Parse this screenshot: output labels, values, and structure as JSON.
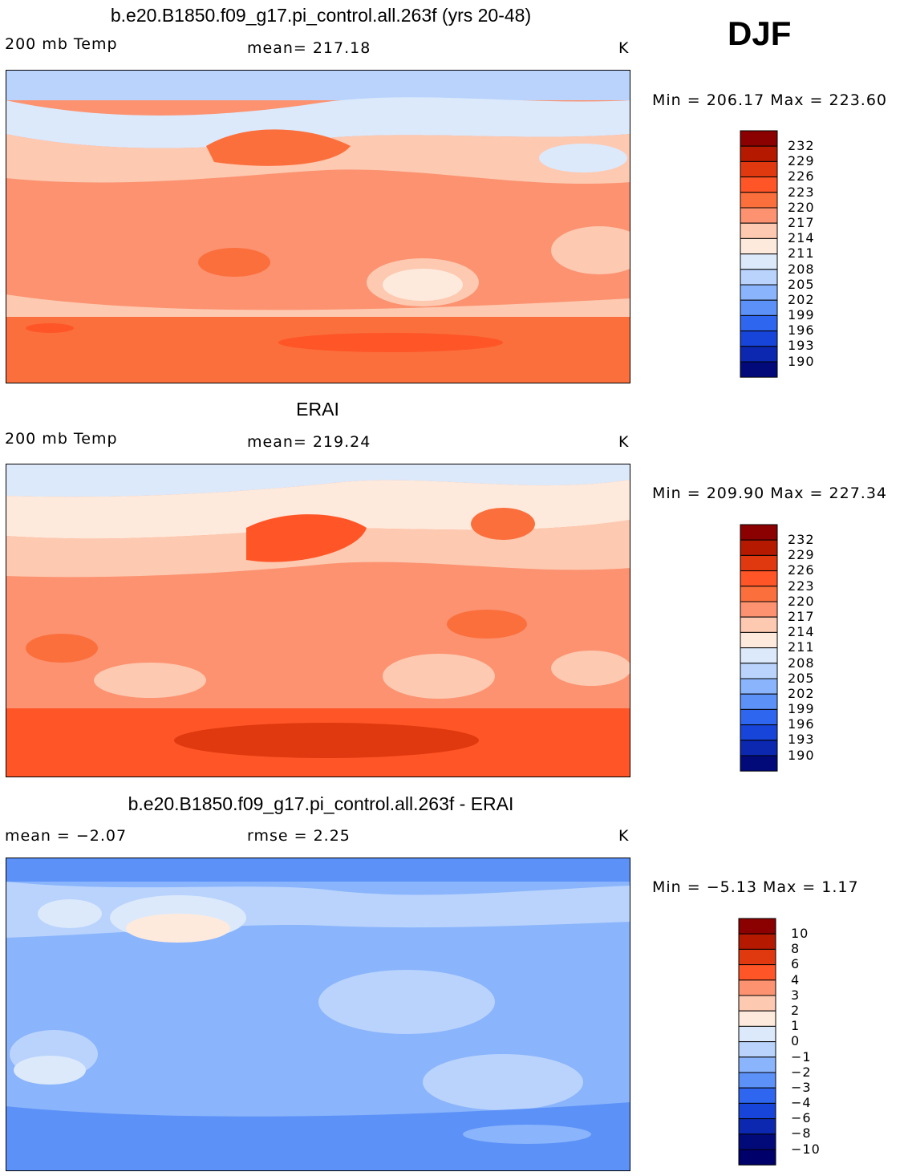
{
  "season": "DJF",
  "panels": [
    {
      "title": "b.e20.B1850.f09_g17.pi_control.all.263f (yrs 20-48)",
      "left_label": "200 mb Temp",
      "center_label": "mean= 217.18",
      "units": "K",
      "minmax": "Min = 206.17 Max = 223.60",
      "colorbar_labels": [
        "232",
        "229",
        "226",
        "223",
        "220",
        "217",
        "214",
        "211",
        "208",
        "205",
        "202",
        "199",
        "196",
        "193",
        "190"
      ]
    },
    {
      "title": "ERAI",
      "left_label": "200 mb Temp",
      "center_label": "mean= 219.24",
      "units": "K",
      "minmax": "Min = 209.90 Max = 227.34",
      "colorbar_labels": [
        "232",
        "229",
        "226",
        "223",
        "220",
        "217",
        "214",
        "211",
        "208",
        "205",
        "202",
        "199",
        "196",
        "193",
        "190"
      ]
    },
    {
      "title": "b.e20.B1850.f09_g17.pi_control.all.263f - ERAI",
      "left_label": "mean =  −2.07",
      "center_label": "rmse =    2.25",
      "units": "K",
      "minmax": "Min =  −5.13 Max =   1.17",
      "colorbar_labels": [
        "10",
        "8",
        "6",
        "4",
        "3",
        "2",
        "1",
        "0",
        "−1",
        "−2",
        "−3",
        "−4",
        "−6",
        "−8",
        "−10"
      ]
    }
  ],
  "colors": {
    "warm_scale": [
      "#8b0000",
      "#b51a00",
      "#e0390f",
      "#ff5527",
      "#fb6f3d",
      "#fc9270",
      "#fdc9b1",
      "#feeadc",
      "#dce9fb",
      "#b9d3fc",
      "#8ab4fb",
      "#5c91f8",
      "#2f66f0",
      "#1845d9",
      "#0c28b0",
      "#020a7a"
    ],
    "diff_scale": [
      "#8b0000",
      "#b51a00",
      "#e0390f",
      "#ff5527",
      "#fc9270",
      "#fdc9b1",
      "#feeadc",
      "#dce9fb",
      "#b9d3fc",
      "#8ab4fb",
      "#5c91f8",
      "#2f66f0",
      "#1845d9",
      "#0c28b0",
      "#020a7a",
      "#00006a"
    ]
  },
  "chart_data": [
    {
      "type": "heatmap",
      "title": "b.e20.B1850.f09_g17.pi_control.all.263f (yrs 20-48)",
      "variable": "200 mb Temp",
      "units": "K",
      "mean": 217.18,
      "min": 206.17,
      "max": 223.6,
      "contour_levels": [
        190,
        193,
        196,
        199,
        202,
        205,
        208,
        211,
        214,
        217,
        220,
        223,
        226,
        229,
        232
      ]
    },
    {
      "type": "heatmap",
      "title": "ERAI",
      "variable": "200 mb Temp",
      "units": "K",
      "mean": 219.24,
      "min": 209.9,
      "max": 227.34,
      "contour_levels": [
        190,
        193,
        196,
        199,
        202,
        205,
        208,
        211,
        214,
        217,
        220,
        223,
        226,
        229,
        232
      ]
    },
    {
      "type": "heatmap",
      "title": "b.e20.B1850.f09_g17.pi_control.all.263f - ERAI",
      "units": "K",
      "mean": -2.07,
      "rmse": 2.25,
      "min": -5.13,
      "max": 1.17,
      "contour_levels": [
        -10,
        -8,
        -6,
        -4,
        -3,
        -2,
        -1,
        0,
        1,
        2,
        3,
        4,
        6,
        8,
        10
      ]
    }
  ]
}
